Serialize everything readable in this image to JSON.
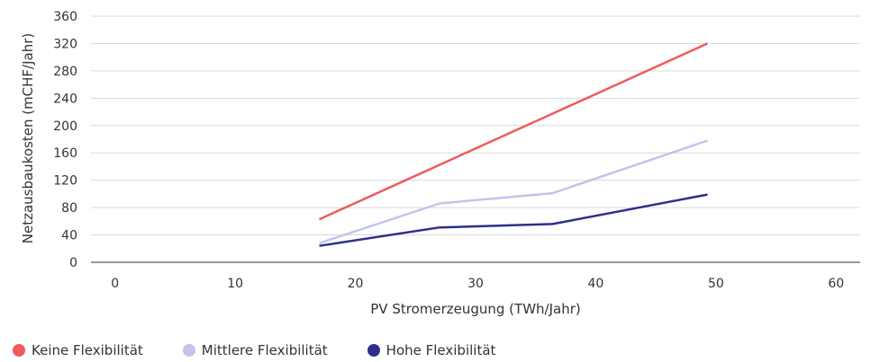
{
  "chart_data": {
    "type": "line",
    "xlabel": "PV Stromerzeugung (TWh/Jahr)",
    "ylabel": "Netzausbaukosten (mCHF/Jahr)",
    "xlim": [
      -2,
      62
    ],
    "ylim": [
      0,
      360
    ],
    "xticks": [
      0,
      10,
      20,
      30,
      40,
      50,
      60
    ],
    "yticks": [
      0,
      40,
      80,
      120,
      160,
      200,
      240,
      280,
      320,
      360
    ],
    "grid": "horizontal",
    "legend_position": "bottom-left",
    "series": [
      {
        "name": "Keine Flexibilität",
        "color": "#f05a5f",
        "x": [
          17.0,
          49.3
        ],
        "y": [
          63,
          320
        ]
      },
      {
        "name": "Mittlere Flexibilität",
        "color": "#c3c3ec",
        "x": [
          17.0,
          27.0,
          36.4,
          49.3
        ],
        "y": [
          28,
          86,
          101,
          178
        ]
      },
      {
        "name": "Hohe Flexibilität",
        "color": "#2e2f8a",
        "x": [
          17.0,
          27.0,
          36.4,
          49.3
        ],
        "y": [
          24,
          51,
          56,
          99
        ]
      }
    ]
  }
}
